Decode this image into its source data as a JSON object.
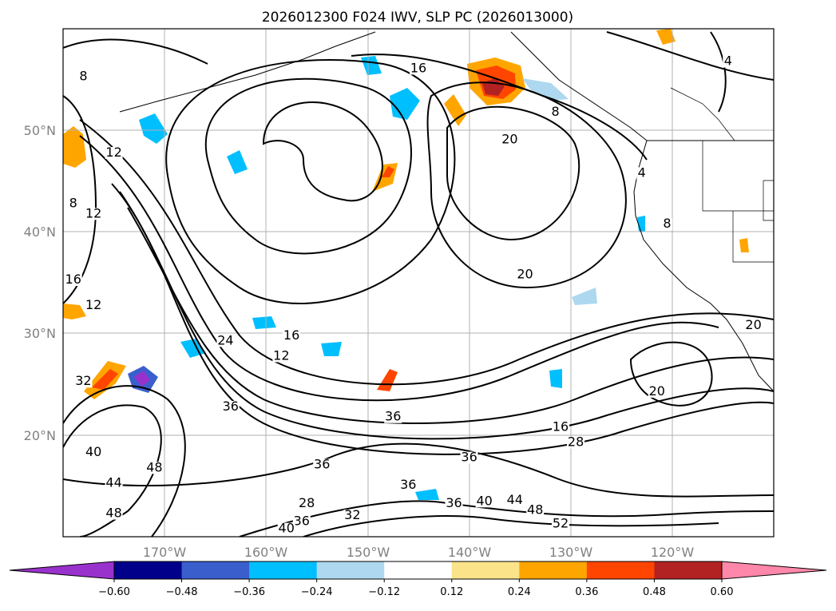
{
  "chart_data": {
    "type": "contour-map",
    "title": "2026012300 F024 IWV, SLP PC (2026013000)",
    "x_ticks": [
      "170°W",
      "160°W",
      "150°W",
      "140°W",
      "130°W",
      "120°W"
    ],
    "y_ticks": [
      "50°N",
      "40°N",
      "30°N",
      "20°N"
    ],
    "lon_range": [
      -180,
      -110
    ],
    "lat_range": [
      10,
      60
    ],
    "grid": true,
    "colorbar": {
      "ticks": [
        "−0.60",
        "−0.48",
        "−0.36",
        "−0.24",
        "−0.12",
        "0.12",
        "0.24",
        "0.36",
        "0.48",
        "0.60"
      ],
      "colors": [
        "#9932cc",
        "#00008b",
        "#3a5fcd",
        "#00bfff",
        "#add8f0",
        "#ffffff",
        "#fbe38a",
        "#ffa500",
        "#ff4500",
        "#b22222",
        "#ff88aa"
      ],
      "extend": "both"
    },
    "contour_labels": [
      {
        "text": "8",
        "lon": -178,
        "lat": 55
      },
      {
        "text": "12",
        "lon": -175,
        "lat": 47.5
      },
      {
        "text": "8",
        "lon": -179,
        "lat": 42.5
      },
      {
        "text": "12",
        "lon": -177,
        "lat": 41.5
      },
      {
        "text": "16",
        "lon": -179,
        "lat": 35
      },
      {
        "text": "12",
        "lon": -177,
        "lat": 32.5
      },
      {
        "text": "32",
        "lon": -178,
        "lat": 25
      },
      {
        "text": "40",
        "lon": -177,
        "lat": 18
      },
      {
        "text": "48",
        "lon": -171,
        "lat": 16.5
      },
      {
        "text": "44",
        "lon": -175,
        "lat": 15
      },
      {
        "text": "48",
        "lon": -175,
        "lat": 12
      },
      {
        "text": "16",
        "lon": -145,
        "lat": 55.8
      },
      {
        "text": "20",
        "lon": -136,
        "lat": 48.8
      },
      {
        "text": "8",
        "lon": -131.5,
        "lat": 51.5
      },
      {
        "text": "4",
        "lon": -114.5,
        "lat": 56.5
      },
      {
        "text": "4",
        "lon": -123,
        "lat": 45.5
      },
      {
        "text": "8",
        "lon": -120.5,
        "lat": 40.5
      },
      {
        "text": "20",
        "lon": -134.5,
        "lat": 35.5
      },
      {
        "text": "24",
        "lon": -164,
        "lat": 29
      },
      {
        "text": "16",
        "lon": -157.5,
        "lat": 29.5
      },
      {
        "text": "12",
        "lon": -158.5,
        "lat": 27.5
      },
      {
        "text": "36",
        "lon": -163.5,
        "lat": 22.5
      },
      {
        "text": "36",
        "lon": -147.5,
        "lat": 21.5
      },
      {
        "text": "16",
        "lon": -131,
        "lat": 20.5
      },
      {
        "text": "28",
        "lon": -129.5,
        "lat": 19
      },
      {
        "text": "20",
        "lon": -121.5,
        "lat": 24
      },
      {
        "text": "20",
        "lon": -112,
        "lat": 30.5
      },
      {
        "text": "36",
        "lon": -154.5,
        "lat": 16.8
      },
      {
        "text": "36",
        "lon": -140,
        "lat": 17.5
      },
      {
        "text": "36",
        "lon": -146,
        "lat": 14.8
      },
      {
        "text": "28",
        "lon": -156,
        "lat": 13
      },
      {
        "text": "36",
        "lon": -156.5,
        "lat": 11.2
      },
      {
        "text": "40",
        "lon": -158,
        "lat": 10.5
      },
      {
        "text": "32",
        "lon": -151.5,
        "lat": 11.8
      },
      {
        "text": "36",
        "lon": -141.5,
        "lat": 13
      },
      {
        "text": "40",
        "lon": -138.5,
        "lat": 13.2
      },
      {
        "text": "44",
        "lon": -135.5,
        "lat": 13.3
      },
      {
        "text": "48",
        "lon": -133.5,
        "lat": 12.3
      },
      {
        "text": "52",
        "lon": -131,
        "lat": 11
      }
    ]
  }
}
